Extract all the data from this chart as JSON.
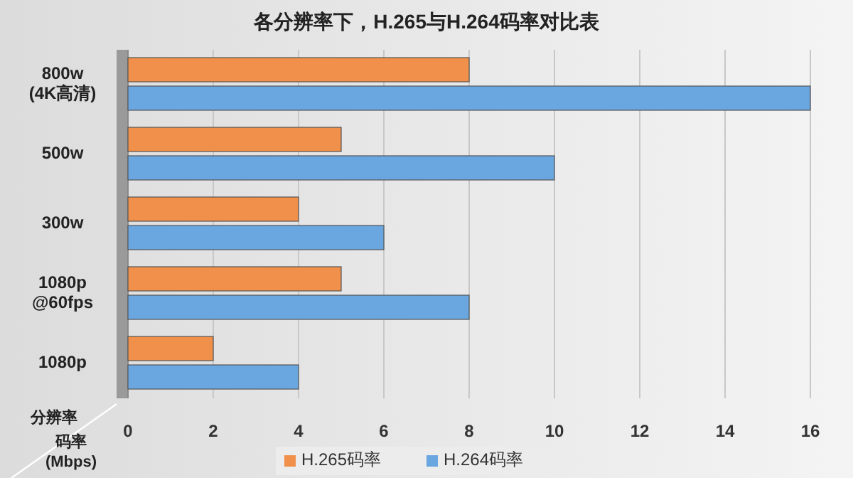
{
  "chart_data": {
    "type": "bar",
    "orientation": "horizontal",
    "title": "各分辨率下，H.265与H.264码率对比表",
    "xlabel": "码率\n(Mbps)",
    "ylabel": "分辨率",
    "categories": [
      "800w\n(4K高清)",
      "500w",
      "300w",
      "1080p\n@60fps",
      "1080p"
    ],
    "series": [
      {
        "name": "H.265码率",
        "color": "#f0904a",
        "values": [
          8,
          5,
          4,
          5,
          2
        ]
      },
      {
        "name": "H.264码率",
        "color": "#6aa6e0",
        "values": [
          16,
          10,
          6,
          8,
          4
        ]
      }
    ],
    "xlim": [
      0,
      16
    ],
    "xticks": [
      0,
      2,
      4,
      6,
      8,
      10,
      12,
      14,
      16
    ],
    "grid": "x",
    "legend": "bottom"
  }
}
